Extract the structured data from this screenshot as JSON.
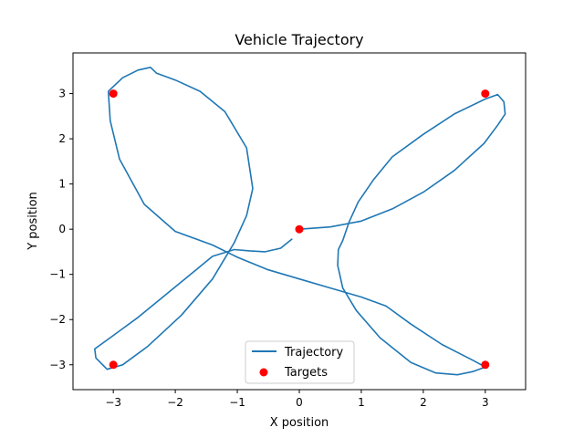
{
  "chart_data": {
    "type": "line",
    "title": "Vehicle Trajectory",
    "xlabel": "X position",
    "ylabel": "Y position",
    "xlim": [
      -3.65,
      3.65
    ],
    "ylim": [
      -3.55,
      3.9
    ],
    "xticks": [
      -3,
      -2,
      -1,
      0,
      1,
      2,
      3
    ],
    "yticks": [
      -3,
      -2,
      -1,
      0,
      1,
      2,
      3
    ],
    "xtick_labels": [
      "−3",
      "−2",
      "−1",
      "0",
      "1",
      "2",
      "3"
    ],
    "ytick_labels": [
      "−3",
      "−2",
      "−1",
      "0",
      "1",
      "2",
      "3"
    ],
    "grid": false,
    "legend_position": "bottom-center",
    "series": [
      {
        "name": "Trajectory",
        "kind": "line",
        "color": "#1f77b4",
        "points": [
          [
            0.0,
            0.0
          ],
          [
            0.5,
            0.05
          ],
          [
            1.0,
            0.18
          ],
          [
            1.5,
            0.45
          ],
          [
            2.0,
            0.82
          ],
          [
            2.5,
            1.3
          ],
          [
            2.98,
            1.9
          ],
          [
            3.2,
            2.3
          ],
          [
            3.32,
            2.55
          ],
          [
            3.3,
            2.82
          ],
          [
            3.2,
            2.98
          ],
          [
            3.0,
            2.88
          ],
          [
            2.5,
            2.55
          ],
          [
            2.0,
            2.1
          ],
          [
            1.5,
            1.6
          ],
          [
            1.2,
            1.1
          ],
          [
            0.95,
            0.6
          ],
          [
            0.8,
            0.15
          ],
          [
            0.7,
            -0.25
          ],
          [
            0.63,
            -0.45
          ],
          [
            0.62,
            -0.8
          ],
          [
            0.7,
            -1.3
          ],
          [
            0.92,
            -1.8
          ],
          [
            1.3,
            -2.4
          ],
          [
            1.8,
            -2.95
          ],
          [
            2.2,
            -3.18
          ],
          [
            2.55,
            -3.22
          ],
          [
            2.8,
            -3.15
          ],
          [
            3.0,
            -3.05
          ],
          [
            2.8,
            -2.9
          ],
          [
            2.3,
            -2.55
          ],
          [
            1.8,
            -2.1
          ],
          [
            1.4,
            -1.7
          ],
          [
            1.0,
            -1.5
          ],
          [
            0.5,
            -1.3
          ],
          [
            0.0,
            -1.1
          ],
          [
            -0.5,
            -0.9
          ],
          [
            -1.0,
            -0.62
          ],
          [
            -1.4,
            -0.35
          ],
          [
            -2.0,
            -0.05
          ],
          [
            -2.5,
            0.55
          ],
          [
            -2.9,
            1.55
          ],
          [
            -3.05,
            2.4
          ],
          [
            -3.08,
            3.05
          ],
          [
            -2.85,
            3.35
          ],
          [
            -2.6,
            3.52
          ],
          [
            -2.4,
            3.58
          ],
          [
            -2.3,
            3.45
          ],
          [
            -2.0,
            3.3
          ],
          [
            -1.6,
            3.05
          ],
          [
            -1.2,
            2.6
          ],
          [
            -0.85,
            1.8
          ],
          [
            -0.75,
            0.9
          ],
          [
            -0.85,
            0.3
          ],
          [
            -1.05,
            -0.3
          ],
          [
            -1.4,
            -1.1
          ],
          [
            -1.9,
            -1.9
          ],
          [
            -2.45,
            -2.6
          ],
          [
            -2.85,
            -3.0
          ],
          [
            -3.1,
            -3.1
          ],
          [
            -3.28,
            -2.85
          ],
          [
            -3.3,
            -2.65
          ],
          [
            -3.0,
            -2.35
          ],
          [
            -2.6,
            -1.95
          ],
          [
            -2.2,
            -1.5
          ],
          [
            -1.8,
            -1.05
          ],
          [
            -1.4,
            -0.6
          ],
          [
            -1.05,
            -0.45
          ],
          [
            -0.8,
            -0.48
          ],
          [
            -0.55,
            -0.5
          ],
          [
            -0.3,
            -0.42
          ],
          [
            -0.12,
            -0.22
          ]
        ]
      },
      {
        "name": "Targets",
        "kind": "scatter",
        "color": "#ff0000",
        "points": [
          [
            0,
            0
          ],
          [
            3,
            3
          ],
          [
            3,
            -3
          ],
          [
            -3,
            -3
          ],
          [
            -3,
            3
          ]
        ]
      }
    ]
  }
}
